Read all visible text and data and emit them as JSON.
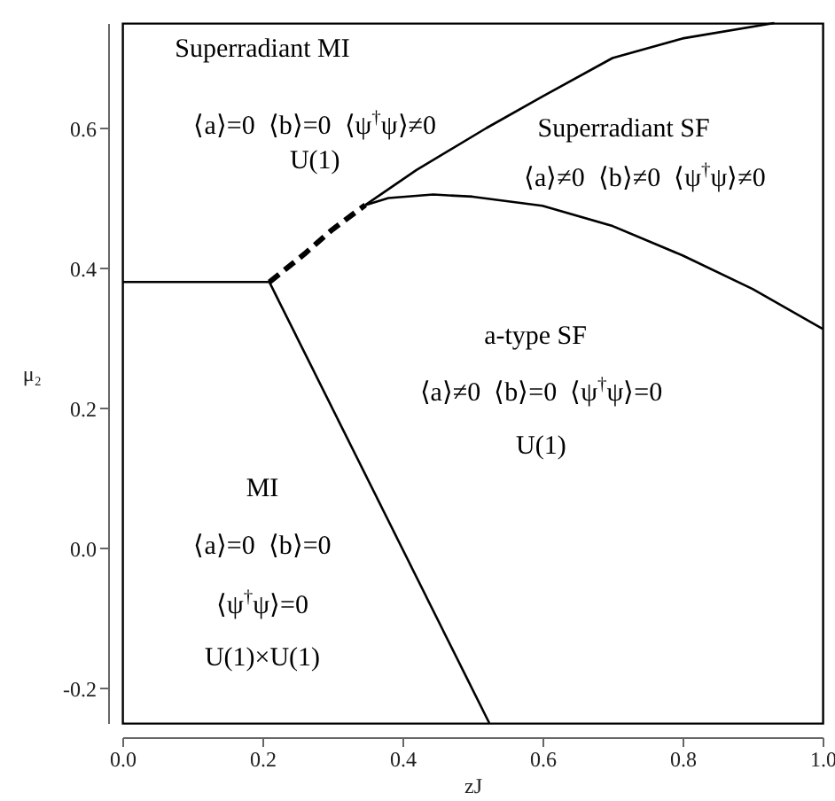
{
  "chart_data": {
    "type": "line",
    "xlabel": "zJ",
    "ylabel": "μ₂",
    "xlim": [
      0,
      1
    ],
    "ylim": [
      -0.25,
      0.75
    ],
    "xticks": [
      {
        "value": 0,
        "label": "0.0"
      },
      0.2,
      0.4,
      0.6,
      0.8,
      {
        "value": 1,
        "label": "1.0"
      }
    ],
    "yticks": [
      -0.2,
      {
        "value": 0,
        "label": "0.0"
      },
      0.2,
      0.4,
      0.6
    ],
    "grid": false,
    "marker": "none",
    "series": [
      {
        "color": "#000000",
        "line_style": "solid",
        "x": [
          0,
          0.21
        ],
        "values": [
          0.38,
          0.38
        ]
      },
      {
        "color": "#000000",
        "line_style": "solid",
        "x": [
          0.21,
          0.524
        ],
        "values": [
          0.38,
          -0.25
        ]
      },
      {
        "color": "#000000",
        "line_style": "dashed",
        "x": [
          0.21,
          0.26,
          0.3,
          0.347
        ],
        "values": [
          0.38,
          0.42,
          0.455,
          0.49
        ]
      },
      {
        "color": "#000000",
        "line_style": "solid",
        "x": [
          0.347,
          0.42,
          0.52,
          0.6,
          0.7,
          0.8,
          0.931
        ],
        "values": [
          0.49,
          0.54,
          0.6,
          0.645,
          0.7,
          0.728,
          0.75
        ]
      },
      {
        "color": "#000000",
        "line_style": "solid",
        "x": [
          0.347,
          0.38,
          0.444,
          0.5,
          0.6,
          0.7,
          0.8,
          0.9,
          1.0
        ],
        "values": [
          0.49,
          0.5,
          0.505,
          0.502,
          0.489,
          0.46,
          0.418,
          0.37,
          0.313
        ]
      }
    ],
    "annotations": [
      "Superradiant MI",
      "⟨a⟩=0  ⟨b⟩=0  ⟨ψ$^{†}$ψ⟩≠0",
      "U(1)",
      "Superradiant SF",
      "⟨a⟩≠0  ⟨b⟩≠0  ⟨ψ$^{†}$ψ⟩≠0",
      "a-type SF",
      "⟨a⟩≠0  ⟨b⟩=0  ⟨ψ$^{†}$ψ⟩=0",
      "U(1)",
      "MI",
      "⟨a⟩=0  ⟨b⟩=0",
      "⟨ψ$^{†}$ψ⟩=0",
      "U(1)×U(1)"
    ]
  }
}
